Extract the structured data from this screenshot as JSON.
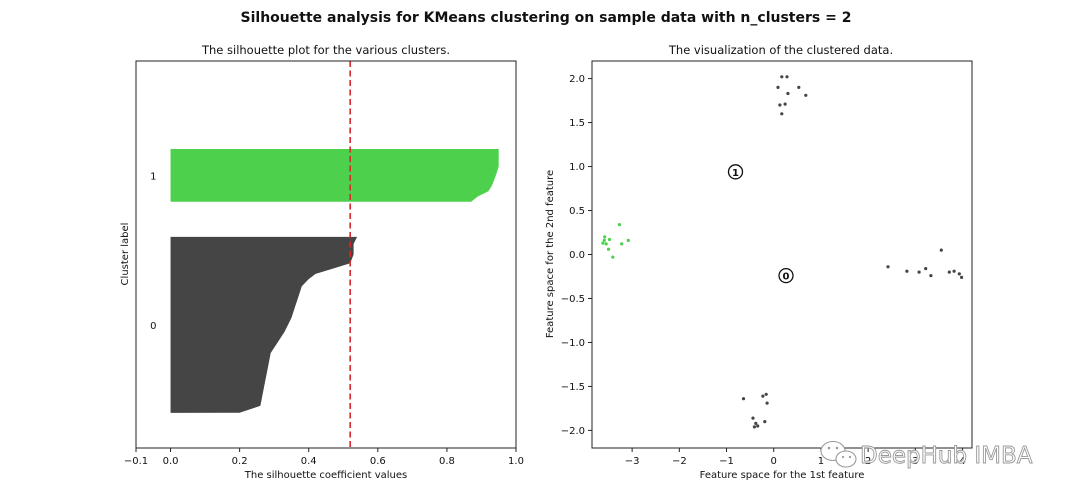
{
  "suptitle": "Silhouette analysis for KMeans clustering on sample data with n_clusters = 2",
  "watermark": "DeepHub IMBA",
  "chart_data": [
    {
      "type": "area",
      "title": "The silhouette plot for the various clusters.",
      "xlabel": "The silhouette coefficient values",
      "ylabel": "Cluster label",
      "xlim": [
        -0.1,
        1.0
      ],
      "ylim": [
        0,
        110
      ],
      "xticks": [
        "−0.1",
        "0.0",
        "0.2",
        "0.4",
        "0.6",
        "0.8",
        "1.0"
      ],
      "xtick_values": [
        -0.1,
        0.0,
        0.2,
        0.4,
        0.6,
        0.8,
        1.0
      ],
      "clusters": [
        {
          "label": "0",
          "color": "#454545",
          "y_range": [
            10,
            60
          ],
          "profile": [
            [
              10,
              0.2
            ],
            [
              12,
              0.26
            ],
            [
              17,
              0.27
            ],
            [
              22,
              0.28
            ],
            [
              27,
              0.29
            ],
            [
              30,
              0.31
            ],
            [
              33,
              0.33
            ],
            [
              37,
              0.35
            ],
            [
              40,
              0.36
            ],
            [
              43,
              0.37
            ],
            [
              46,
              0.38
            ],
            [
              48,
              0.4
            ],
            [
              49.5,
              0.42
            ],
            [
              51,
              0.47
            ],
            [
              52.5,
              0.52
            ],
            [
              55,
              0.53
            ],
            [
              58,
              0.53
            ],
            [
              60,
              0.54
            ]
          ]
        },
        {
          "label": "1",
          "color": "#4dd14d",
          "y_range": [
            70,
            85
          ],
          "profile": [
            [
              70,
              0.87
            ],
            [
              71.5,
              0.89
            ],
            [
              73,
              0.92
            ],
            [
              74.5,
              0.93
            ],
            [
              77,
              0.94
            ],
            [
              80,
              0.95
            ],
            [
              85,
              0.95
            ]
          ]
        }
      ],
      "average_line": {
        "x": 0.52,
        "color": "#d62728",
        "style": "dashed"
      }
    },
    {
      "type": "scatter",
      "title": "The visualization of the clustered data.",
      "xlabel": "Feature space for the 1st feature",
      "ylabel": "Feature space for the 2nd feature",
      "xlim": [
        -3.85,
        4.2
      ],
      "ylim": [
        -2.2,
        2.2
      ],
      "xticks": [
        "−3",
        "−2",
        "−1",
        "0",
        "1",
        "2",
        "3",
        "4"
      ],
      "xtick_values": [
        -3,
        -2,
        -1,
        0,
        1,
        2,
        3,
        4
      ],
      "yticks": [
        "2.0",
        "1.5",
        "1.0",
        "0.5",
        "0.0",
        "−0.5",
        "−1.0",
        "−1.5",
        "−2.0"
      ],
      "ytick_values": [
        2.0,
        1.5,
        1.0,
        0.5,
        0.0,
        -0.5,
        -1.0,
        -1.5,
        -2.0
      ],
      "series": [
        {
          "cluster": "1",
          "color": "#4dd14d",
          "points": [
            [
              -3.62,
              0.13
            ],
            [
              -3.59,
              0.16
            ],
            [
              -3.58,
              0.2
            ],
            [
              -3.55,
              0.12
            ],
            [
              -3.5,
              0.06
            ],
            [
              -3.48,
              0.17
            ],
            [
              -3.41,
              -0.03
            ],
            [
              -3.27,
              0.34
            ],
            [
              -3.22,
              0.12
            ],
            [
              -3.08,
              0.16
            ]
          ]
        },
        {
          "cluster": "0",
          "color": "#454545",
          "points": [
            [
              0.17,
              2.02
            ],
            [
              0.28,
              2.02
            ],
            [
              0.09,
              1.9
            ],
            [
              0.53,
              1.9
            ],
            [
              0.68,
              1.81
            ],
            [
              0.3,
              1.83
            ],
            [
              0.13,
              1.7
            ],
            [
              0.24,
              1.71
            ],
            [
              0.17,
              1.6
            ],
            [
              2.42,
              -0.14
            ],
            [
              2.82,
              -0.19
            ],
            [
              3.08,
              -0.2
            ],
            [
              3.22,
              -0.16
            ],
            [
              3.33,
              -0.24
            ],
            [
              3.55,
              0.05
            ],
            [
              3.72,
              -0.2
            ],
            [
              3.82,
              -0.19
            ],
            [
              3.93,
              -0.22
            ],
            [
              3.98,
              -0.26
            ],
            [
              -0.64,
              -1.64
            ],
            [
              -0.23,
              -1.61
            ],
            [
              -0.16,
              -1.59
            ],
            [
              -0.14,
              -1.69
            ],
            [
              -0.44,
              -1.86
            ],
            [
              -0.38,
              -1.92
            ],
            [
              -0.41,
              -1.96
            ],
            [
              -0.34,
              -1.95
            ],
            [
              -0.19,
              -1.9
            ]
          ]
        }
      ],
      "centers": [
        {
          "label": "0",
          "x": 0.26,
          "y": -0.24
        },
        {
          "label": "1",
          "x": -0.81,
          "y": 0.94
        }
      ]
    }
  ]
}
